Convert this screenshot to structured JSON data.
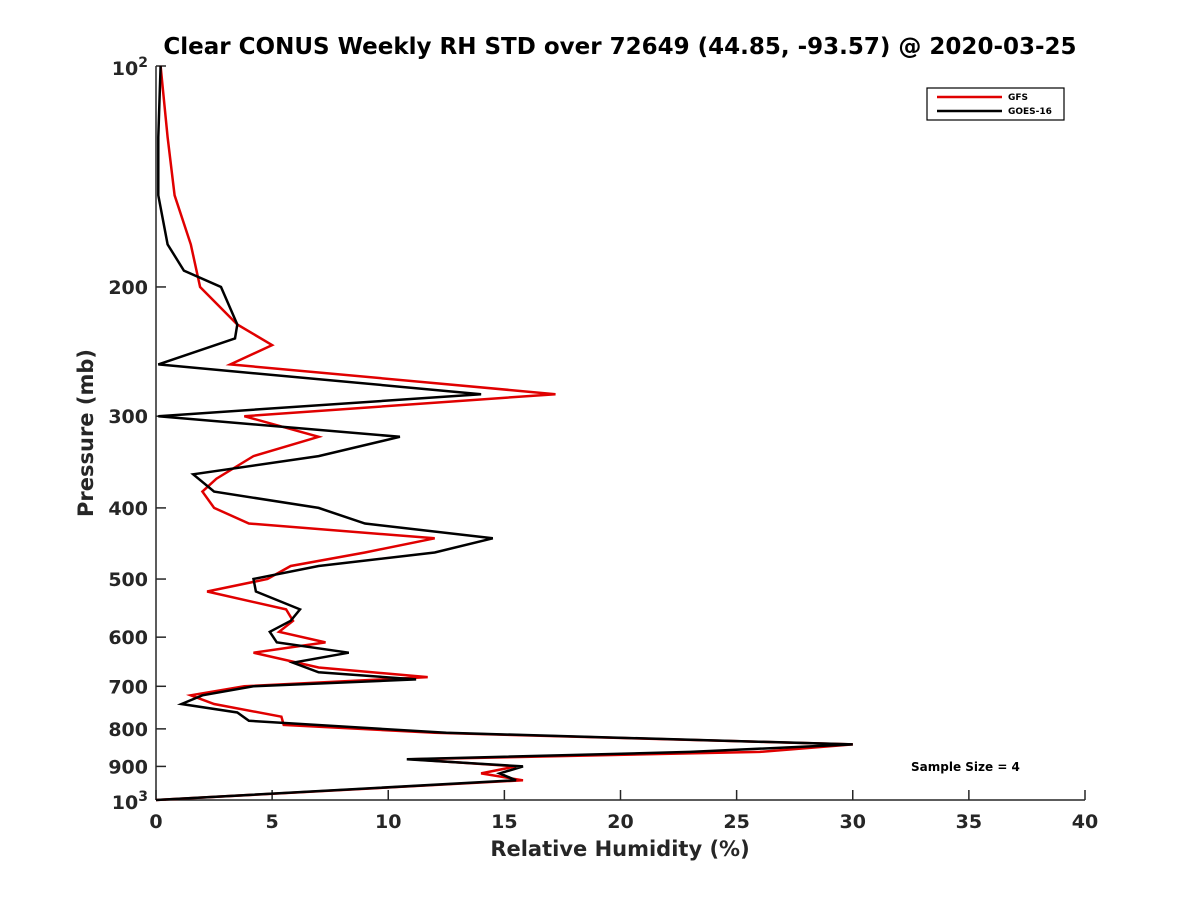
{
  "chart_data": {
    "type": "line",
    "title": "Clear CONUS Weekly RH STD over 72649 (44.85, -93.57) @ 2020-03-25",
    "xlabel": "Relative Humidity (%)",
    "ylabel": "Pressure (mb)",
    "xlim": [
      0,
      40
    ],
    "ylim": [
      100,
      1000
    ],
    "y_scale": "log",
    "y_reversed": true,
    "grid": false,
    "legend_position": "top-right",
    "x_ticks": [
      "0",
      "5",
      "10",
      "15",
      "20",
      "25",
      "30",
      "35",
      "40"
    ],
    "y_ticks": [
      {
        "value": 100,
        "base": "10",
        "exp": "2"
      },
      {
        "value": 200,
        "label": "200"
      },
      {
        "value": 300,
        "label": "300"
      },
      {
        "value": 400,
        "label": "400"
      },
      {
        "value": 500,
        "label": "500"
      },
      {
        "value": 600,
        "label": "600"
      },
      {
        "value": 700,
        "label": "700"
      },
      {
        "value": 800,
        "label": "800"
      },
      {
        "value": 900,
        "label": "900"
      },
      {
        "value": 1000,
        "base": "10",
        "exp": "3"
      }
    ],
    "annotation": "Sample Size = 4",
    "series": [
      {
        "name": "GFS",
        "color": "#e00000",
        "points": [
          [
            0.2,
            100
          ],
          [
            0.5,
            125
          ],
          [
            0.8,
            150
          ],
          [
            1.5,
            175
          ],
          [
            1.9,
            200
          ],
          [
            3.5,
            225
          ],
          [
            5.0,
            240
          ],
          [
            3.2,
            255
          ],
          [
            17.2,
            280
          ],
          [
            3.8,
            300
          ],
          [
            7.0,
            320
          ],
          [
            4.2,
            340
          ],
          [
            2.6,
            365
          ],
          [
            2.0,
            380
          ],
          [
            2.5,
            400
          ],
          [
            4.0,
            420
          ],
          [
            12.0,
            440
          ],
          [
            9.0,
            460
          ],
          [
            5.8,
            480
          ],
          [
            4.8,
            500
          ],
          [
            2.2,
            520
          ],
          [
            5.6,
            550
          ],
          [
            5.9,
            570
          ],
          [
            5.3,
            590
          ],
          [
            7.3,
            610
          ],
          [
            4.2,
            630
          ],
          [
            7.0,
            660
          ],
          [
            11.7,
            680
          ],
          [
            3.8,
            700
          ],
          [
            1.5,
            720
          ],
          [
            2.5,
            740
          ],
          [
            5.4,
            770
          ],
          [
            5.5,
            790
          ],
          [
            12.0,
            810
          ],
          [
            30.0,
            840
          ],
          [
            26.0,
            860
          ],
          [
            11.0,
            880
          ],
          [
            15.5,
            900
          ],
          [
            14.0,
            920
          ],
          [
            15.8,
            940
          ],
          [
            0,
            1000
          ]
        ]
      },
      {
        "name": "GOES-16",
        "color": "#000000",
        "points": [
          [
            0.2,
            100
          ],
          [
            0.1,
            125
          ],
          [
            0.1,
            150
          ],
          [
            0.5,
            175
          ],
          [
            1.2,
            190
          ],
          [
            2.8,
            200
          ],
          [
            3.5,
            225
          ],
          [
            3.4,
            235
          ],
          [
            0.1,
            255
          ],
          [
            14.0,
            280
          ],
          [
            0.1,
            300
          ],
          [
            10.5,
            320
          ],
          [
            7.0,
            340
          ],
          [
            1.6,
            360
          ],
          [
            2.5,
            380
          ],
          [
            7.0,
            400
          ],
          [
            9.0,
            420
          ],
          [
            14.5,
            440
          ],
          [
            12.0,
            460
          ],
          [
            7.0,
            480
          ],
          [
            4.2,
            500
          ],
          [
            4.3,
            520
          ],
          [
            6.2,
            550
          ],
          [
            5.8,
            570
          ],
          [
            4.9,
            590
          ],
          [
            5.2,
            610
          ],
          [
            8.3,
            630
          ],
          [
            5.9,
            650
          ],
          [
            7.0,
            670
          ],
          [
            11.2,
            685
          ],
          [
            4.2,
            700
          ],
          [
            2.0,
            720
          ],
          [
            1.1,
            740
          ],
          [
            3.5,
            760
          ],
          [
            4.0,
            780
          ],
          [
            12.5,
            810
          ],
          [
            30.0,
            840
          ],
          [
            23.0,
            860
          ],
          [
            10.8,
            880
          ],
          [
            15.8,
            900
          ],
          [
            14.8,
            920
          ],
          [
            15.5,
            940
          ],
          [
            0,
            1000
          ]
        ]
      }
    ]
  }
}
